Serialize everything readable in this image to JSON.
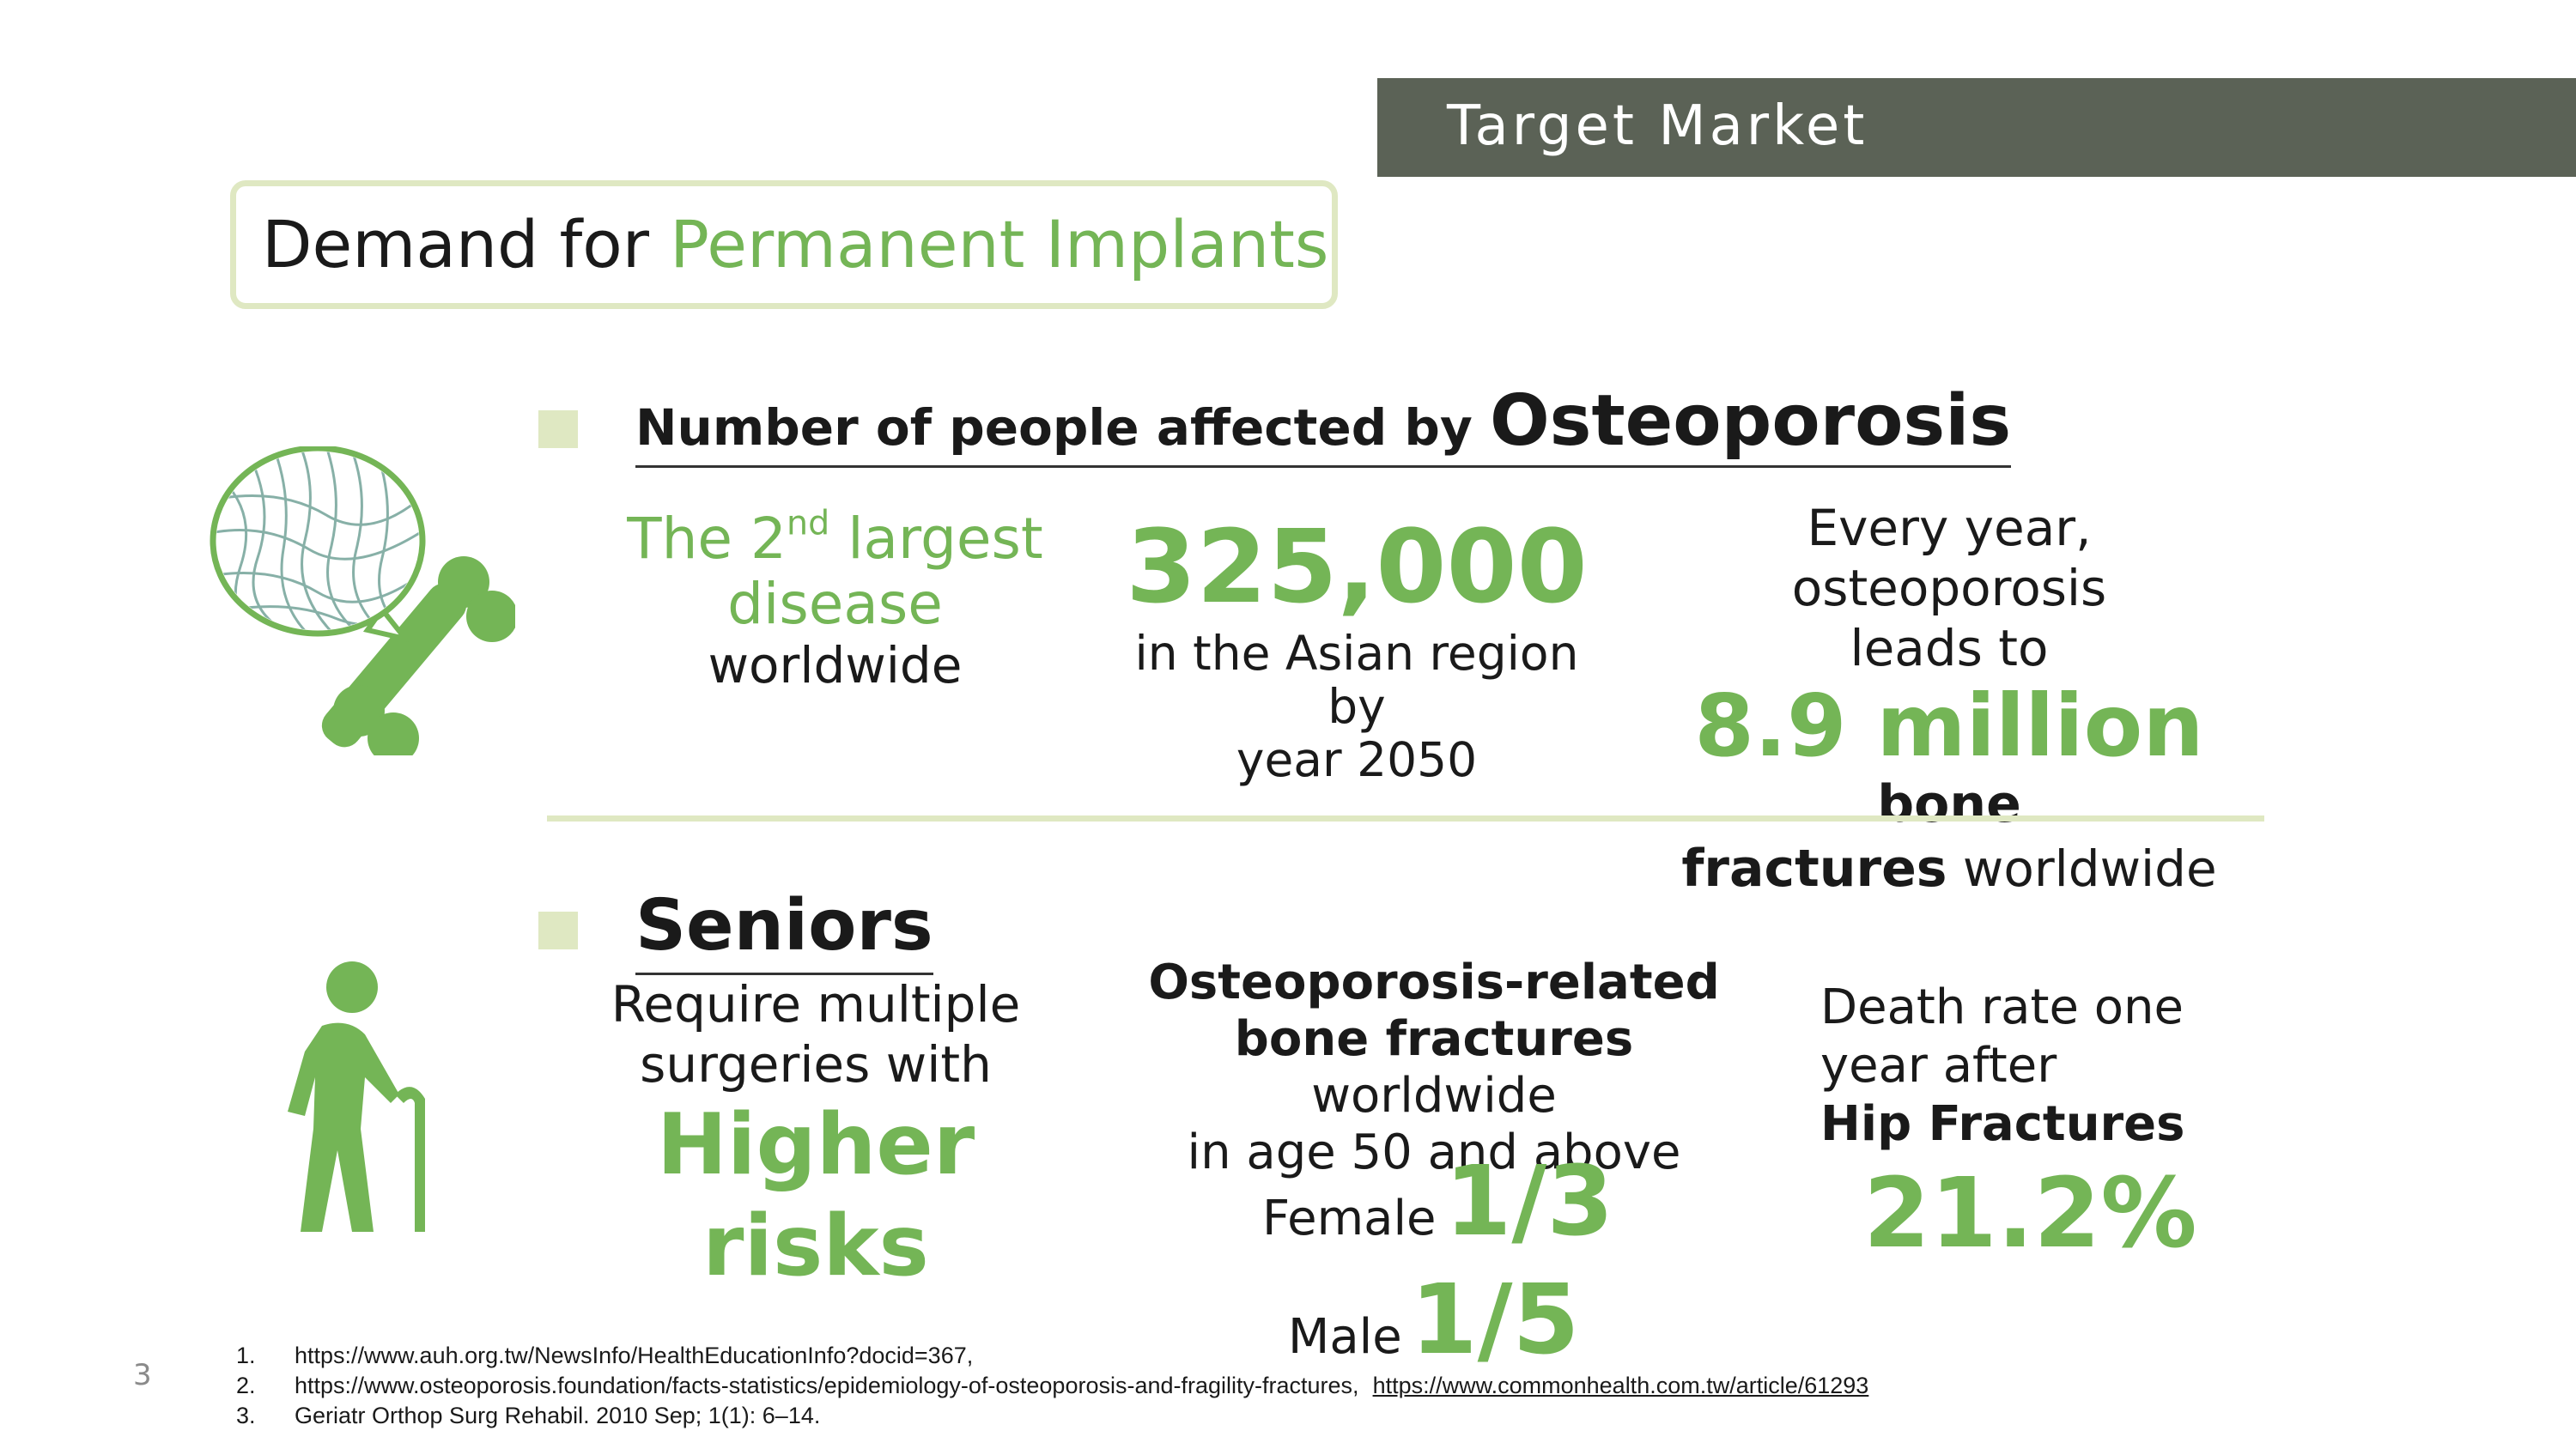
{
  "header": {
    "title": "Target Market"
  },
  "title": {
    "part1": "Demand for ",
    "part2": "Permanent Implants"
  },
  "section1": {
    "heading_small": "Number of people affected by ",
    "heading_big": "Osteoporosis",
    "col1": {
      "line1_pre": "The 2",
      "line1_sup": "nd",
      "line1_post": " largest",
      "line2": "disease",
      "line3": "worldwide"
    },
    "col2": {
      "number": "325,000",
      "line1": "in the Asian region by",
      "line2": "year 2050"
    },
    "col3": {
      "line1": "Every year, osteoporosis",
      "line2": "leads to",
      "big": "8.9 million",
      "bold1": " bone",
      "bold2": "fractures",
      "line_end": " worldwide"
    }
  },
  "section2": {
    "heading": "Seniors",
    "col1": {
      "line1": "Require multiple",
      "line2": "surgeries with",
      "big1": "Higher",
      "big2": "risks"
    },
    "col2": {
      "line1": "Osteoporosis-related",
      "line2_bold": "bone fractures",
      "line2_rest": " worldwide",
      "line3": "in age 50  and above",
      "female_label": "Female",
      "female_value": "1/3",
      "male_label": "Male",
      "male_value": "1/5"
    },
    "col3": {
      "line1": "Death rate one",
      "line2": "year after",
      "line3": "Hip Fractures",
      "big": "21.2%"
    }
  },
  "footer": {
    "page_number": "3",
    "references": [
      {
        "num": "1.",
        "text": "https://www.auh.org.tw/NewsInfo/HealthEducationInfo?docid=367,",
        "link": ""
      },
      {
        "num": "2.",
        "text": "https://www.osteoporosis.foundation/facts-statistics/epidemiology-of-osteoporosis-and-fragility-fractures,",
        "link": "https://www.commonhealth.com.tw/article/61293"
      },
      {
        "num": "3.",
        "text": "Geriatr Orthop Surg Rehabil. 2010 Sep; 1(1): 6–14.",
        "link": ""
      }
    ]
  },
  "icons": {
    "bone": "bone-magnifier-icon",
    "senior": "senior-with-cane-icon"
  },
  "colors": {
    "accent_green": "#74b556",
    "header_band": "#5b6256",
    "light_green": "#dfe8c2"
  }
}
